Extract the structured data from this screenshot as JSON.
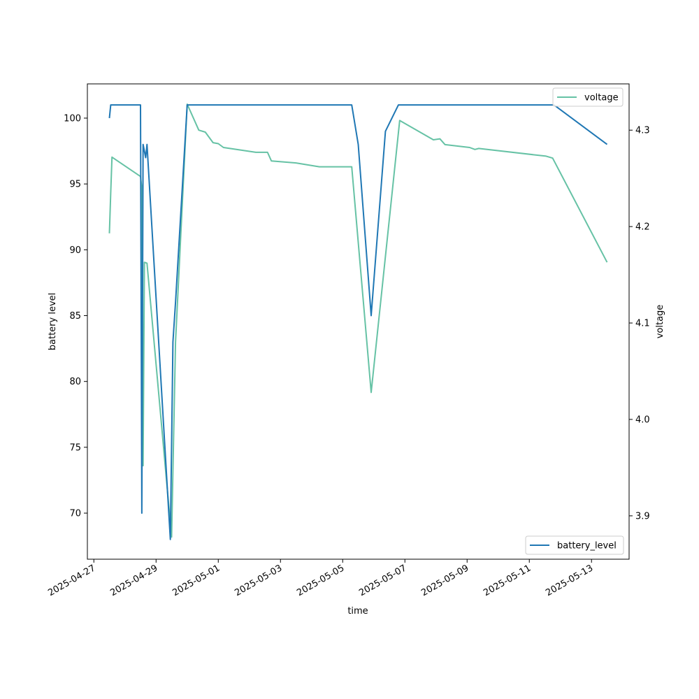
{
  "chart_data": {
    "type": "line",
    "xlabel": "time",
    "ylabel_left": "battery level",
    "ylabel_right": "voltage",
    "x_ticks": [
      "2025-04-27",
      "2025-04-29",
      "2025-05-01",
      "2025-05-03",
      "2025-05-05",
      "2025-05-07",
      "2025-05-09",
      "2025-05-11",
      "2025-05-13"
    ],
    "xlim": [
      "2025-04-26T19:00",
      "2025-05-14T05:00"
    ],
    "y_left": {
      "lim": [
        66.5,
        102.6
      ],
      "ticks": [
        70,
        75,
        80,
        85,
        90,
        95,
        100
      ]
    },
    "y_right": {
      "lim": [
        3.855,
        4.348
      ],
      "ticks": [
        3.9,
        4.0,
        4.1,
        4.2,
        4.3
      ]
    },
    "grid": false,
    "legends": [
      {
        "position": "top-right",
        "series": "voltage"
      },
      {
        "position": "bottom-right",
        "series": "battery_level"
      }
    ],
    "series": [
      {
        "name": "battery_level",
        "axis": "left",
        "color": "#1f77b4",
        "points": [
          [
            "2025-04-27T12:00",
            100
          ],
          [
            "2025-04-27T13:00",
            101
          ],
          [
            "2025-04-28T12:00",
            101
          ],
          [
            "2025-04-28T13:00",
            70
          ],
          [
            "2025-04-28T14:00",
            98
          ],
          [
            "2025-04-28T16:00",
            97
          ],
          [
            "2025-04-28T17:00",
            98
          ],
          [
            "2025-04-29T11:00",
            68
          ],
          [
            "2025-04-29T13:00",
            83
          ],
          [
            "2025-04-29T15:00",
            86
          ],
          [
            "2025-04-30T00:00",
            101
          ],
          [
            "2025-05-05T07:00",
            101
          ],
          [
            "2025-05-05T12:00",
            98
          ],
          [
            "2025-05-05T22:00",
            85
          ],
          [
            "2025-05-06T09:00",
            99
          ],
          [
            "2025-05-06T19:00",
            101
          ],
          [
            "2025-05-11T19:00",
            101
          ],
          [
            "2025-05-13T12:00",
            98
          ]
        ]
      },
      {
        "name": "voltage",
        "axis": "right",
        "color": "#66c2a5",
        "points": [
          [
            "2025-04-27T12:00",
            4.193
          ],
          [
            "2025-04-27T13:00",
            4.235
          ],
          [
            "2025-04-27T14:00",
            4.272
          ],
          [
            "2025-04-28T12:00",
            4.252
          ],
          [
            "2025-04-28T13:00",
            4.24
          ],
          [
            "2025-04-28T14:00",
            3.952
          ],
          [
            "2025-04-28T15:00",
            4.163
          ],
          [
            "2025-04-28T17:00",
            4.162
          ],
          [
            "2025-04-29T12:00",
            3.878
          ],
          [
            "2025-04-29T15:00",
            4.08
          ],
          [
            "2025-04-30T00:00",
            4.327
          ],
          [
            "2025-04-30T09:00",
            4.3
          ],
          [
            "2025-04-30T14:00",
            4.298
          ],
          [
            "2025-04-30T20:00",
            4.287
          ],
          [
            "2025-05-01T00:00",
            4.286
          ],
          [
            "2025-05-01T04:00",
            4.282
          ],
          [
            "2025-05-02T05:00",
            4.277
          ],
          [
            "2025-05-02T14:00",
            4.277
          ],
          [
            "2025-05-02T17:00",
            4.268
          ],
          [
            "2025-05-03T12:00",
            4.266
          ],
          [
            "2025-05-04T06:00",
            4.262
          ],
          [
            "2025-05-05T07:00",
            4.262
          ],
          [
            "2025-05-05T22:00",
            4.028
          ],
          [
            "2025-05-06T20:00",
            4.31
          ],
          [
            "2025-05-07T22:00",
            4.29
          ],
          [
            "2025-05-08T03:00",
            4.291
          ],
          [
            "2025-05-08T07:00",
            4.285
          ],
          [
            "2025-05-09T02:00",
            4.282
          ],
          [
            "2025-05-09T06:00",
            4.28
          ],
          [
            "2025-05-09T09:00",
            4.281
          ],
          [
            "2025-05-11T13:00",
            4.273
          ],
          [
            "2025-05-11T18:00",
            4.271
          ],
          [
            "2025-05-13T12:00",
            4.163
          ]
        ]
      }
    ]
  }
}
